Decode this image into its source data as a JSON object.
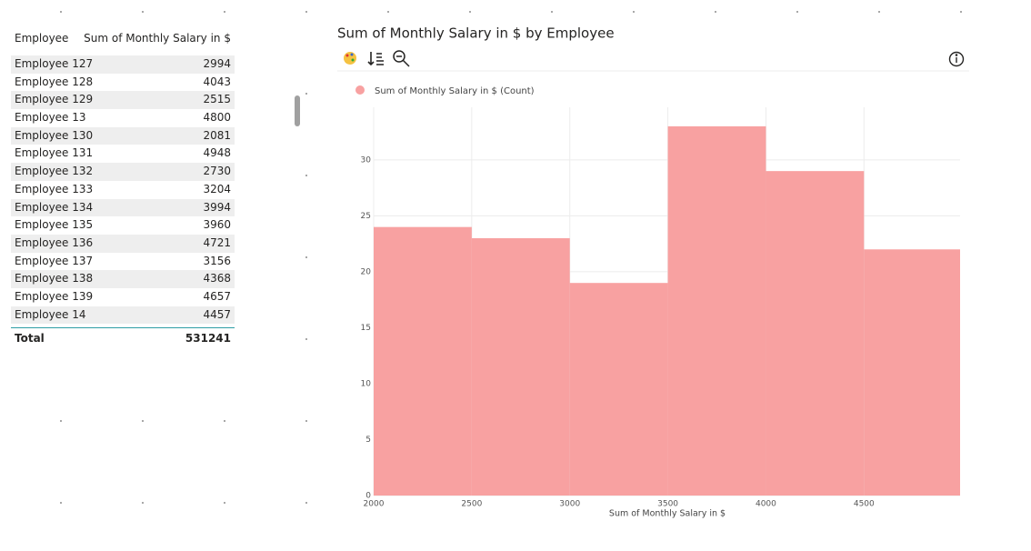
{
  "table": {
    "header": [
      "Employee",
      "Sum of Monthly Salary in $"
    ],
    "rows": [
      [
        "Employee 127",
        2994
      ],
      [
        "Employee 128",
        4043
      ],
      [
        "Employee 129",
        2515
      ],
      [
        "Employee 13",
        4800
      ],
      [
        "Employee 130",
        2081
      ],
      [
        "Employee 131",
        4948
      ],
      [
        "Employee 132",
        2730
      ],
      [
        "Employee 133",
        3204
      ],
      [
        "Employee 134",
        3994
      ],
      [
        "Employee 135",
        3960
      ],
      [
        "Employee 136",
        4721
      ],
      [
        "Employee 137",
        3156
      ],
      [
        "Employee 138",
        4368
      ],
      [
        "Employee 139",
        4657
      ],
      [
        "Employee 14",
        4457
      ]
    ],
    "total": [
      "Total",
      531241
    ]
  },
  "chart_data": {
    "type": "histogram",
    "title": "Sum of Monthly Salary in $ by Employee",
    "x_label": "Sum of Monthly Salary in $",
    "bins": [
      2000,
      2500,
      3000,
      3500,
      4000,
      4500,
      4990
    ],
    "series": [
      {
        "name": "Sum of Monthly Salary in $ (Count)",
        "color": "#f8a1a1",
        "values": [
          24,
          23,
          19,
          33,
          29,
          22
        ]
      }
    ],
    "xlim": [
      2000,
      4990
    ],
    "xticks": [
      2000,
      2500,
      3000,
      3500,
      4000,
      4500
    ],
    "ylim": [
      0,
      34.7
    ],
    "yticks": [
      0,
      5,
      10,
      15,
      20,
      25,
      30
    ],
    "grid": true
  }
}
